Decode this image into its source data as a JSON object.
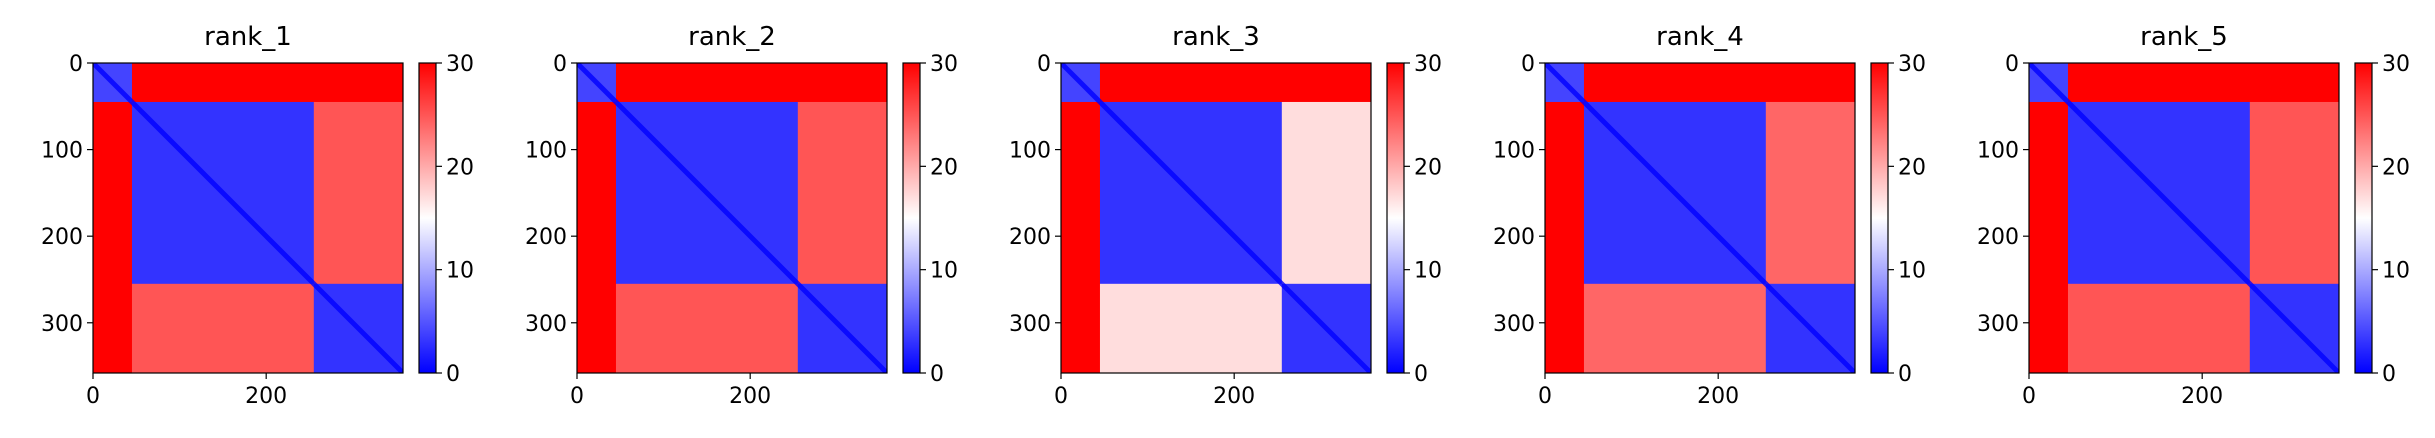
{
  "chart_data": [
    {
      "type": "heatmap",
      "title": "rank_1",
      "xlim": [
        0,
        358
      ],
      "ylim": [
        358,
        0
      ],
      "xticks": [
        0,
        200
      ],
      "yticks": [
        0,
        100,
        200,
        300
      ],
      "colorbar": {
        "range": [
          0,
          30
        ],
        "ticks": [
          0,
          10,
          20,
          30
        ],
        "colormap": [
          "#0000ff",
          "#ffffff",
          "#ff0000"
        ]
      },
      "domains": [
        [
          0,
          45
        ],
        [
          45,
          255
        ],
        [
          255,
          358
        ]
      ],
      "block_levels": [
        [
          4,
          30,
          30
        ],
        [
          30,
          3,
          25
        ],
        [
          30,
          25,
          3
        ]
      ],
      "grid": false
    },
    {
      "type": "heatmap",
      "title": "rank_2",
      "xlim": [
        0,
        358
      ],
      "ylim": [
        358,
        0
      ],
      "xticks": [
        0,
        200
      ],
      "yticks": [
        0,
        100,
        200,
        300
      ],
      "colorbar": {
        "range": [
          0,
          30
        ],
        "ticks": [
          0,
          10,
          20,
          30
        ],
        "colormap": [
          "#0000ff",
          "#ffffff",
          "#ff0000"
        ]
      },
      "domains": [
        [
          0,
          45
        ],
        [
          45,
          255
        ],
        [
          255,
          358
        ]
      ],
      "block_levels": [
        [
          4,
          30,
          30
        ],
        [
          30,
          3,
          25
        ],
        [
          30,
          25,
          3
        ]
      ],
      "grid": false
    },
    {
      "type": "heatmap",
      "title": "rank_3",
      "xlim": [
        0,
        358
      ],
      "ylim": [
        358,
        0
      ],
      "xticks": [
        0,
        200
      ],
      "yticks": [
        0,
        100,
        200,
        300
      ],
      "colorbar": {
        "range": [
          0,
          30
        ],
        "ticks": [
          0,
          10,
          20,
          30
        ],
        "colormap": [
          "#0000ff",
          "#ffffff",
          "#ff0000"
        ]
      },
      "domains": [
        [
          0,
          45
        ],
        [
          45,
          255
        ],
        [
          255,
          358
        ]
      ],
      "block_levels": [
        [
          4,
          30,
          30
        ],
        [
          30,
          3,
          17
        ],
        [
          30,
          17,
          3
        ]
      ],
      "grid": false
    },
    {
      "type": "heatmap",
      "title": "rank_4",
      "xlim": [
        0,
        358
      ],
      "ylim": [
        358,
        0
      ],
      "xticks": [
        0,
        200
      ],
      "yticks": [
        0,
        100,
        200,
        300
      ],
      "colorbar": {
        "range": [
          0,
          30
        ],
        "ticks": [
          0,
          10,
          20,
          30
        ],
        "colormap": [
          "#0000ff",
          "#ffffff",
          "#ff0000"
        ]
      },
      "domains": [
        [
          0,
          45
        ],
        [
          45,
          255
        ],
        [
          255,
          358
        ]
      ],
      "block_levels": [
        [
          4,
          30,
          30
        ],
        [
          30,
          3,
          24
        ],
        [
          30,
          24,
          3
        ]
      ],
      "grid": false
    },
    {
      "type": "heatmap",
      "title": "rank_5",
      "xlim": [
        0,
        358
      ],
      "ylim": [
        358,
        0
      ],
      "xticks": [
        0,
        200
      ],
      "yticks": [
        0,
        100,
        200,
        300
      ],
      "colorbar": {
        "range": [
          0,
          30
        ],
        "ticks": [
          0,
          10,
          20,
          30
        ],
        "colormap": [
          "#0000ff",
          "#ffffff",
          "#ff0000"
        ]
      },
      "domains": [
        [
          0,
          45
        ],
        [
          45,
          255
        ],
        [
          255,
          358
        ]
      ],
      "block_levels": [
        [
          4,
          30,
          30
        ],
        [
          30,
          3,
          25
        ],
        [
          30,
          25,
          3
        ]
      ],
      "grid": false
    }
  ]
}
